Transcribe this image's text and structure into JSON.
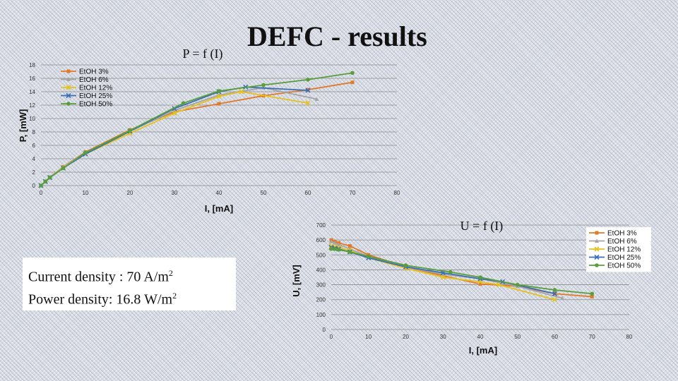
{
  "slide_title": "DEFC - results",
  "info": {
    "current_label": "Current density : 70 A/m",
    "current_exp": "2",
    "power_label": "Power density:  16.8 W/m",
    "power_exp": "2"
  },
  "chart_data": [
    {
      "type": "line",
      "title": "P = f (I)",
      "xlabel": "I, [mA]",
      "ylabel": "P, [mW]",
      "xlim": [
        0,
        80
      ],
      "ylim": [
        0,
        18
      ],
      "xticks": [
        0,
        10,
        20,
        30,
        40,
        50,
        60,
        70,
        80
      ],
      "yticks": [
        0,
        2,
        4,
        6,
        8,
        10,
        12,
        14,
        16,
        18
      ],
      "legend_position": "top-left",
      "series": [
        {
          "name": "EtOH 3%",
          "color": "#e07a2a",
          "marker": "square",
          "x": [
            0,
            1,
            2,
            5,
            10,
            20,
            30,
            40,
            50,
            60,
            70
          ],
          "y": [
            0,
            0.6,
            1.2,
            2.8,
            5,
            8.3,
            11,
            12.2,
            13.4,
            14.3,
            15.4
          ]
        },
        {
          "name": "EtOH 6%",
          "color": "#a5a5a5",
          "marker": "triangle",
          "x": [
            0,
            1,
            2,
            5,
            10,
            20,
            30,
            40,
            50,
            62
          ],
          "y": [
            0,
            0.6,
            1.2,
            2.8,
            4.9,
            8.1,
            11.2,
            13.5,
            14.6,
            12.9
          ]
        },
        {
          "name": "EtOH 12%",
          "color": "#e6c21c",
          "marker": "x",
          "x": [
            0,
            1,
            2,
            5,
            10,
            20,
            30,
            40,
            45,
            60
          ],
          "y": [
            0,
            0.6,
            1.2,
            2.7,
            4.7,
            7.8,
            10.8,
            13.3,
            14,
            12.3
          ]
        },
        {
          "name": "EtOH 25%",
          "color": "#3b6fb5",
          "marker": "x",
          "x": [
            0,
            1,
            2,
            5,
            10,
            20,
            30,
            40,
            46,
            60
          ],
          "y": [
            0,
            0.6,
            1.2,
            2.6,
            4.7,
            8.1,
            11.5,
            14,
            14.7,
            14.2
          ]
        },
        {
          "name": "EtOH 50%",
          "color": "#5a9e3c",
          "marker": "circle",
          "x": [
            0,
            1,
            2,
            5,
            10,
            20,
            32,
            40,
            50,
            60,
            70
          ],
          "y": [
            0,
            0.6,
            1.2,
            2.6,
            4.9,
            8.2,
            12.3,
            14.1,
            15,
            15.8,
            16.8
          ]
        }
      ]
    },
    {
      "type": "line",
      "title": "U = f (I)",
      "xlabel": "I, [mA]",
      "ylabel": "U, [mV]",
      "xlim": [
        0,
        80
      ],
      "ylim": [
        0,
        700
      ],
      "xticks": [
        0,
        10,
        20,
        30,
        40,
        50,
        60,
        70,
        80
      ],
      "yticks": [
        0,
        100,
        200,
        300,
        400,
        500,
        600,
        700
      ],
      "legend_position": "right",
      "series": [
        {
          "name": "EtOH 3%",
          "color": "#e07a2a",
          "marker": "square",
          "x": [
            0,
            1,
            2,
            5,
            10,
            20,
            30,
            40,
            50,
            60,
            70
          ],
          "y": [
            600,
            590,
            580,
            560,
            500,
            420,
            360,
            305,
            290,
            240,
            220
          ]
        },
        {
          "name": "EtOH 6%",
          "color": "#a5a5a5",
          "marker": "triangle",
          "x": [
            0,
            1,
            2,
            5,
            10,
            20,
            30,
            40,
            50,
            62
          ],
          "y": [
            590,
            580,
            570,
            540,
            490,
            420,
            370,
            340,
            290,
            210
          ]
        },
        {
          "name": "EtOH 12%",
          "color": "#e6c21c",
          "marker": "x",
          "x": [
            0,
            1,
            2,
            5,
            10,
            20,
            30,
            40,
            45,
            60
          ],
          "y": [
            560,
            555,
            550,
            530,
            480,
            410,
            350,
            320,
            300,
            200
          ]
        },
        {
          "name": "EtOH 25%",
          "color": "#3b6fb5",
          "marker": "x",
          "x": [
            0,
            1,
            2,
            5,
            10,
            20,
            30,
            40,
            46,
            60
          ],
          "y": [
            550,
            545,
            540,
            520,
            480,
            420,
            380,
            340,
            320,
            240
          ]
        },
        {
          "name": "EtOH 50%",
          "color": "#5a9e3c",
          "marker": "circle",
          "x": [
            0,
            1,
            2,
            5,
            10,
            20,
            32,
            40,
            50,
            60,
            70
          ],
          "y": [
            540,
            540,
            535,
            520,
            490,
            430,
            385,
            350,
            300,
            265,
            240
          ]
        }
      ]
    }
  ]
}
